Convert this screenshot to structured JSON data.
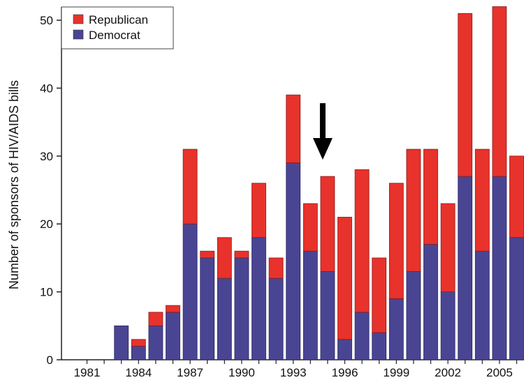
{
  "chart_data": {
    "type": "bar",
    "stacked": true,
    "title": "",
    "xlabel": "",
    "ylabel": "Number of sponsors of HIV/AIDS bills",
    "ylim": [
      0,
      52
    ],
    "yticks": [
      0,
      10,
      20,
      30,
      40,
      50
    ],
    "categories": [
      "1981",
      "1982",
      "1983",
      "1984",
      "1985",
      "1986",
      "1987",
      "1988",
      "1989",
      "1990",
      "1991",
      "1992",
      "1993",
      "1994",
      "1995",
      "1996",
      "1997",
      "1998",
      "1999",
      "2000",
      "2001",
      "2002",
      "2003",
      "2004",
      "2005",
      "2006"
    ],
    "xtick_labels": [
      "1981",
      "1984",
      "1987",
      "1990",
      "1993",
      "1996",
      "1999",
      "2002",
      "2005"
    ],
    "series": [
      {
        "name": "Democrat",
        "color": "#4a4593",
        "values": [
          0,
          0,
          5,
          2,
          5,
          7,
          20,
          15,
          12,
          15,
          18,
          12,
          29,
          16,
          13,
          3,
          7,
          4,
          9,
          13,
          17,
          10,
          27,
          16,
          27,
          18
        ]
      },
      {
        "name": "Republican",
        "color": "#e8322c",
        "values": [
          0,
          0,
          0,
          1,
          2,
          1,
          11,
          1,
          6,
          1,
          8,
          3,
          10,
          7,
          14,
          18,
          21,
          11,
          17,
          18,
          14,
          13,
          24,
          15,
          25,
          12
        ]
      }
    ],
    "legend": {
      "placement": "top-left",
      "entries": [
        "Republican",
        "Democrat"
      ]
    },
    "annotation": {
      "type": "arrow",
      "pointing": "down",
      "at_category": "1995",
      "color": "#000000"
    },
    "grid": false
  }
}
